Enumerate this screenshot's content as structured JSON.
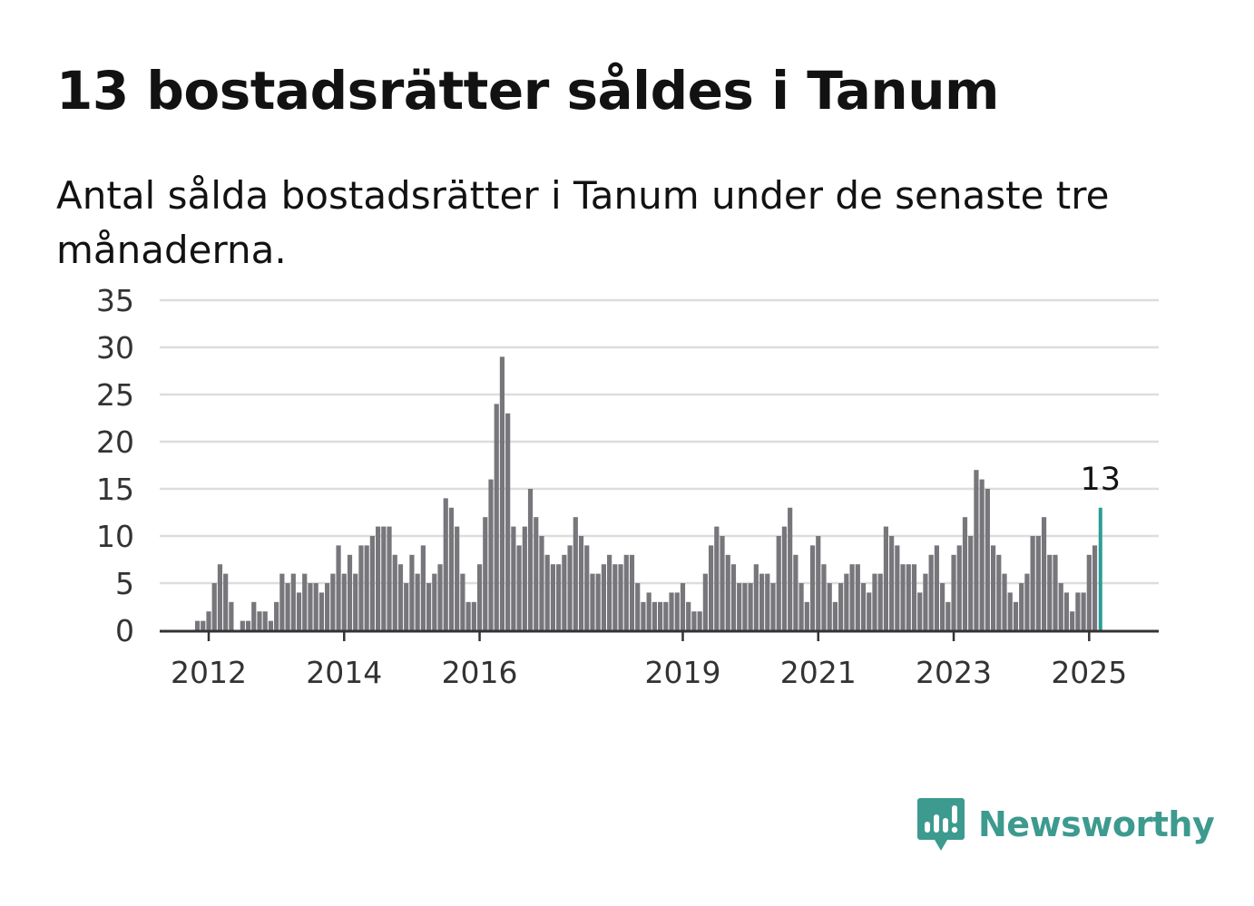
{
  "title": "13 bostadsrätter såldes i Tanum",
  "subtitle": "Antal sålda bostadsrätter i Tanum under de senaste tre månaderna.",
  "brand": {
    "name": "Newsworthy",
    "icon": "newsworthy-logo-icon",
    "color": "#3d9a8f"
  },
  "chart_data": {
    "type": "bar",
    "frequency": "monthly",
    "x_start": "2011-10",
    "x_end": "2025-04",
    "ylim": [
      0,
      35
    ],
    "yticks": [
      0,
      5,
      10,
      15,
      20,
      25,
      30,
      35
    ],
    "xticks": [
      "2012",
      "2014",
      "2016",
      "2019",
      "2021",
      "2023",
      "2025"
    ],
    "grid": true,
    "bar_color": "#77767b",
    "highlight_color": "#2a9d96",
    "highlight_label": "13",
    "values": [
      0,
      1,
      1,
      2,
      5,
      7,
      6,
      3,
      0,
      1,
      1,
      3,
      2,
      2,
      1,
      3,
      6,
      5,
      6,
      4,
      6,
      5,
      5,
      4,
      5,
      6,
      9,
      6,
      8,
      6,
      9,
      9,
      10,
      11,
      11,
      11,
      8,
      7,
      5,
      8,
      6,
      9,
      5,
      6,
      7,
      14,
      13,
      11,
      6,
      3,
      3,
      7,
      12,
      16,
      24,
      29,
      23,
      11,
      9,
      11,
      15,
      12,
      10,
      8,
      7,
      7,
      8,
      9,
      12,
      10,
      9,
      6,
      6,
      7,
      8,
      7,
      7,
      8,
      8,
      5,
      3,
      4,
      3,
      3,
      3,
      4,
      4,
      5,
      3,
      2,
      2,
      6,
      9,
      11,
      10,
      8,
      7,
      5,
      5,
      5,
      7,
      6,
      6,
      5,
      10,
      11,
      13,
      8,
      5,
      3,
      9,
      10,
      7,
      5,
      3,
      5,
      6,
      7,
      7,
      5,
      4,
      6,
      6,
      11,
      10,
      9,
      7,
      7,
      7,
      4,
      6,
      8,
      9,
      5,
      3,
      8,
      9,
      12,
      10,
      17,
      16,
      15,
      9,
      8,
      6,
      4,
      3,
      5,
      6,
      10,
      10,
      12,
      8,
      8,
      5,
      4,
      2,
      4,
      4,
      8,
      9,
      13
    ]
  }
}
